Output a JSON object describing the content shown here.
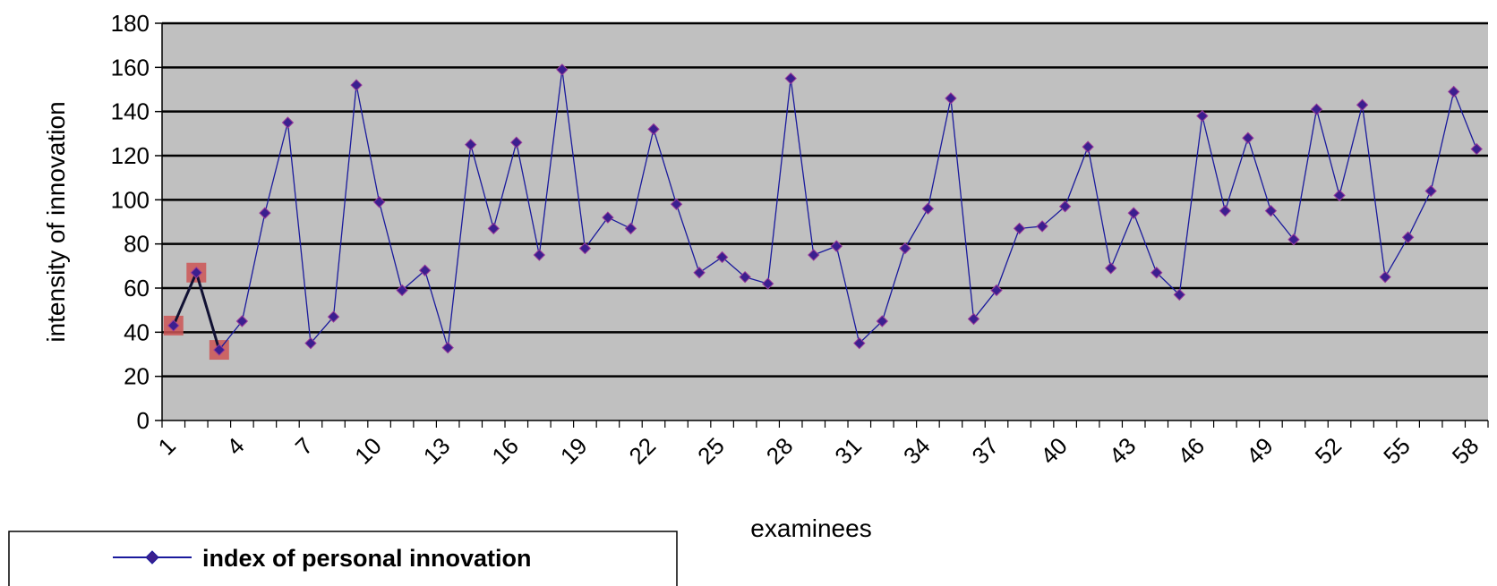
{
  "chart_data": {
    "type": "line",
    "xlabel": "examinees",
    "ylabel": "intensity of innovation",
    "ylim": [
      0,
      180
    ],
    "yticks": [
      0,
      20,
      40,
      60,
      80,
      100,
      120,
      140,
      160,
      180
    ],
    "xticks": [
      "1",
      "4",
      "7",
      "10",
      "13",
      "16",
      "19",
      "22",
      "25",
      "28",
      "31",
      "34",
      "37",
      "40",
      "43",
      "46",
      "49",
      "52",
      "55",
      "58"
    ],
    "grid": "horizontal",
    "legend_position": "bottom-left",
    "highlighted_points": [
      1,
      2,
      3
    ],
    "series": [
      {
        "name": "index of personal innovation",
        "color": "#1a1a9c",
        "marker": "diamond",
        "marker_color": "#3b1f8f",
        "x": [
          1,
          2,
          3,
          4,
          5,
          6,
          7,
          8,
          9,
          10,
          11,
          12,
          13,
          14,
          15,
          16,
          17,
          18,
          19,
          20,
          21,
          22,
          23,
          24,
          25,
          26,
          27,
          28,
          29,
          30,
          31,
          32,
          33,
          34,
          35,
          36,
          37,
          38,
          39,
          40,
          41,
          42,
          43,
          44,
          45,
          46,
          47,
          48,
          49,
          50,
          51,
          52,
          53,
          54,
          55,
          56,
          57,
          58
        ],
        "values": [
          43,
          67,
          32,
          45,
          94,
          135,
          35,
          47,
          152,
          99,
          59,
          68,
          33,
          125,
          87,
          126,
          75,
          159,
          78,
          92,
          87,
          132,
          98,
          67,
          74,
          65,
          62,
          155,
          75,
          79,
          35,
          45,
          78,
          96,
          146,
          46,
          59,
          87,
          88,
          97,
          124,
          69,
          94,
          67,
          57,
          138,
          95,
          128,
          95,
          82,
          141,
          102,
          143,
          65,
          83,
          104,
          149,
          123
        ]
      }
    ],
    "plot_background": "#c0c0c0",
    "highlight_color": "#cc5555"
  }
}
